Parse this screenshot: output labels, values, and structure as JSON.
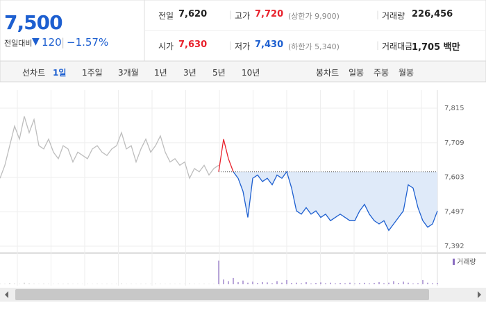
{
  "header": {
    "price": "7,500",
    "change_label": "전일대비",
    "change_arrow": "▼",
    "change": "120",
    "change_rate": "−1.57%"
  },
  "stats": {
    "rows": [
      [
        {
          "label": "전일",
          "value": "7,620"
        },
        {
          "label": "고가",
          "value": "7,720",
          "note": "(상한가 9,900)"
        },
        {
          "label": "거래량",
          "value": "226,456"
        }
      ],
      [
        {
          "label": "시가",
          "value": "7,630"
        },
        {
          "label": "저가",
          "value": "7,430",
          "note": "(하한가 5,340)"
        },
        {
          "label": "거래대금",
          "value": "1,705 백만"
        }
      ]
    ]
  },
  "tabs": {
    "line_title": "선차트",
    "line_tabs": [
      "1일",
      "1주일",
      "3개월",
      "1년",
      "3년",
      "5년",
      "10년"
    ],
    "line_selected": 0,
    "candle_title": "봉차트",
    "candle_tabs": [
      "일봉",
      "주봉",
      "월봉"
    ]
  },
  "chart_data": {
    "type": "line",
    "ylim": [
      7392,
      7815
    ],
    "yticks": [
      {
        "value": 7815,
        "label": "7,815"
      },
      {
        "value": 7709,
        "label": "7,709"
      },
      {
        "value": 7603,
        "label": "7,603"
      },
      {
        "value": 7497,
        "label": "7,497"
      },
      {
        "value": 7392,
        "label": "7,392"
      }
    ],
    "grid": true,
    "reference_line": 7620,
    "series": [
      {
        "color": "#bdbdbd",
        "values": [
          7600,
          7640,
          7700,
          7760,
          7720,
          7790,
          7740,
          7780,
          7700,
          7690,
          7720,
          7680,
          7660,
          7700,
          7690,
          7650,
          7680,
          7670,
          7660,
          7690,
          7700,
          7680,
          7670,
          7690,
          7700,
          7740,
          7690,
          7700,
          7650,
          7690,
          7720,
          7680,
          7700,
          7730,
          7680,
          7650,
          7660,
          7640,
          7650,
          7600,
          7630,
          7620,
          7640,
          7610,
          7630,
          7640,
          null,
          null,
          null,
          null,
          null,
          null,
          null,
          null,
          null,
          null,
          null,
          null,
          null,
          null,
          null,
          null,
          null,
          null,
          null,
          null,
          null,
          null,
          null,
          null,
          null,
          null,
          null,
          null,
          null,
          null,
          null,
          null,
          null,
          null,
          null,
          null,
          null,
          null,
          null,
          null,
          null,
          null,
          null,
          null,
          null
        ]
      },
      {
        "color": "#e8212c",
        "values": [
          null,
          null,
          null,
          null,
          null,
          null,
          null,
          null,
          null,
          null,
          null,
          null,
          null,
          null,
          null,
          null,
          null,
          null,
          null,
          null,
          null,
          null,
          null,
          null,
          null,
          null,
          null,
          null,
          null,
          null,
          null,
          null,
          null,
          null,
          null,
          null,
          null,
          null,
          null,
          null,
          null,
          null,
          null,
          null,
          null,
          7620,
          7720,
          7660,
          7620,
          null,
          null,
          null,
          null,
          null,
          null,
          null,
          null,
          null,
          null,
          null,
          null,
          null,
          null,
          null,
          null,
          null,
          null,
          null,
          null,
          null,
          null,
          null,
          null,
          null,
          null,
          null,
          null,
          null,
          null,
          null,
          null,
          null,
          null,
          null,
          null,
          null,
          null,
          null,
          null,
          null,
          null
        ]
      },
      {
        "color": "#1d5fd0",
        "fill": "#dfeaf9",
        "values": [
          null,
          null,
          null,
          null,
          null,
          null,
          null,
          null,
          null,
          null,
          null,
          null,
          null,
          null,
          null,
          null,
          null,
          null,
          null,
          null,
          null,
          null,
          null,
          null,
          null,
          null,
          null,
          null,
          null,
          null,
          null,
          null,
          null,
          null,
          null,
          null,
          null,
          null,
          null,
          null,
          null,
          null,
          null,
          null,
          null,
          null,
          null,
          null,
          7620,
          7600,
          7560,
          7480,
          7600,
          7610,
          7590,
          7600,
          7580,
          7610,
          7600,
          7620,
          7570,
          7500,
          7490,
          7510,
          7490,
          7500,
          7480,
          7490,
          7470,
          7480,
          7490,
          7480,
          7470,
          7470,
          7500,
          7520,
          7490,
          7470,
          7460,
          7470,
          7440,
          7460,
          7480,
          7500,
          7580,
          7570,
          7510,
          7470,
          7450,
          7460,
          7500
        ]
      }
    ],
    "volume": {
      "legend": "거래량",
      "color": "#8a6cc0",
      "ylim": [
        0,
        50000
      ],
      "values": [
        1200,
        800,
        2500,
        1500,
        900,
        3000,
        1800,
        1100,
        700,
        1300,
        900,
        600,
        1000,
        800,
        1200,
        700,
        900,
        500,
        800,
        600,
        1100,
        700,
        900,
        600,
        800,
        1500,
        700,
        900,
        600,
        800,
        1000,
        700,
        1200,
        900,
        600,
        800,
        700,
        900,
        600,
        1400,
        800,
        700,
        900,
        600,
        800,
        45000,
        9000,
        6000,
        12000,
        4000,
        7000,
        3000,
        5000,
        2500,
        4000,
        3500,
        2000,
        6000,
        3000,
        8000,
        2500,
        3000,
        2000,
        4000,
        1500,
        2500,
        3500,
        2000,
        3000,
        1800,
        2500,
        2000,
        3000,
        1500,
        2200,
        2800,
        1800,
        2500,
        4000,
        2000,
        3000,
        6000,
        2500,
        5000,
        3000,
        1500,
        2000,
        8000,
        3000,
        2000,
        2500
      ]
    }
  }
}
